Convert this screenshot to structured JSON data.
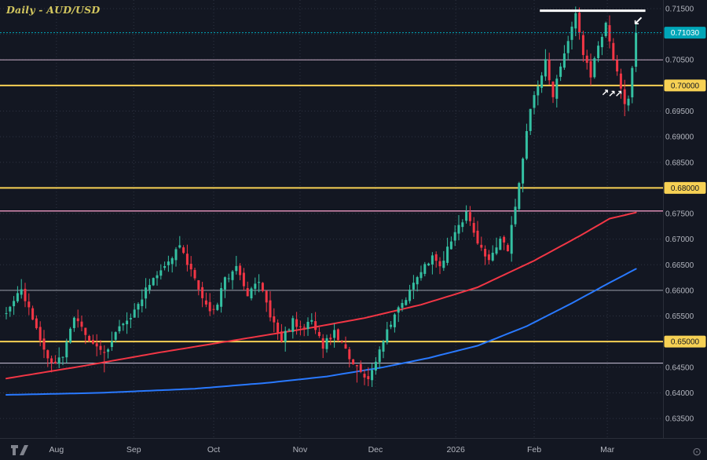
{
  "header": {
    "title": "Daily - AUD/USD"
  },
  "icons": {
    "visibility": "⊙",
    "logo": "tradingview-logo"
  },
  "colors": {
    "background": "#131722",
    "grid": "#2e3342",
    "axis_text": "#b2b5be",
    "up_candle": "#34c0a2",
    "down_candle": "#f23645",
    "yellow_level": "#f7d154",
    "current_price": "#00a6b8",
    "ma_fast": "#f23645",
    "ma_slow": "#2979ff",
    "annotation": "#ffffff"
  },
  "chart_data": {
    "type": "candlestick",
    "symbol": "AUD/USD",
    "timeframe": "Daily",
    "title": "Daily - AUD/USD",
    "y_range": {
      "top": 0.71668,
      "bottom": 0.63118
    },
    "y_axis": {
      "step": 0.005,
      "labels": [
        "0.71500",
        "0.71000",
        "0.70500",
        "0.70000",
        "0.69500",
        "0.69000",
        "0.68500",
        "0.68000",
        "0.67500",
        "0.67000",
        "0.66500",
        "0.66000",
        "0.65500",
        "0.65000",
        "0.64500",
        "0.64000",
        "0.63500"
      ]
    },
    "x_axis": {
      "labels": [
        {
          "text": "Aug",
          "day": 13.3
        },
        {
          "text": "Sep",
          "day": 33.8
        },
        {
          "text": "Oct",
          "day": 55
        },
        {
          "text": "Nov",
          "day": 77.9
        },
        {
          "text": "Dec",
          "day": 97.9
        },
        {
          "text": "2026",
          "day": 119.2
        },
        {
          "text": "Feb",
          "day": 140
        },
        {
          "text": "Mar",
          "day": 159.4
        }
      ]
    },
    "current_price": {
      "value": 0.7103,
      "label": "0.71030",
      "color": "#00a6b8"
    },
    "levels": [
      {
        "value": 0.705,
        "color": "#c9aec6",
        "width": 1
      },
      {
        "value": 0.7,
        "color": "#f7d154",
        "width": 2,
        "badge": "0.70000"
      },
      {
        "value": 0.68,
        "color": "#f7d154",
        "width": 2,
        "badge": "0.68000"
      },
      {
        "value": 0.6755,
        "color": "#d98cb3",
        "width": 1.5
      },
      {
        "value": 0.66,
        "color": "#9aa0aa",
        "width": 1
      },
      {
        "value": 0.65,
        "color": "#f7d154",
        "width": 2,
        "badge": "0.65000"
      },
      {
        "value": 0.6458,
        "color": "#cfc6dd",
        "width": 1
      }
    ],
    "segments": [
      {
        "from_day": 141.5,
        "to_day": 169.5,
        "value": 0.7146,
        "color": "#ffffff",
        "width": 3
      }
    ],
    "arrows": [
      {
        "day": 158.8,
        "price": 0.6986,
        "glyph": "↗",
        "size": 12
      },
      {
        "day": 160.6,
        "price": 0.6984,
        "glyph": "↗",
        "size": 12
      },
      {
        "day": 162.4,
        "price": 0.6984,
        "glyph": "↗",
        "size": 12
      },
      {
        "day": 167.6,
        "price": 0.7124,
        "glyph": "↙",
        "size": 16
      }
    ],
    "candles": {
      "count": 168,
      "x0": 8,
      "spacing": 4.8,
      "body_w": 3,
      "seed": 11,
      "jitter": {
        "open": 0.001,
        "close": 0.0013,
        "wick": 0.002
      }
    },
    "price_anchors": [
      [
        0,
        0.6555
      ],
      [
        4,
        0.6605
      ],
      [
        8,
        0.652
      ],
      [
        12,
        0.6458
      ],
      [
        15,
        0.6472
      ],
      [
        18,
        0.6545
      ],
      [
        22,
        0.6502
      ],
      [
        26,
        0.6476
      ],
      [
        30,
        0.653
      ],
      [
        34,
        0.656
      ],
      [
        38,
        0.6615
      ],
      [
        42,
        0.665
      ],
      [
        46,
        0.6685
      ],
      [
        49,
        0.664
      ],
      [
        52,
        0.658
      ],
      [
        55,
        0.6556
      ],
      [
        58,
        0.662
      ],
      [
        61,
        0.6648
      ],
      [
        64,
        0.6592
      ],
      [
        67,
        0.6618
      ],
      [
        70,
        0.6552
      ],
      [
        73,
        0.6506
      ],
      [
        76,
        0.654
      ],
      [
        78,
        0.6522
      ],
      [
        81,
        0.6546
      ],
      [
        84,
        0.6492
      ],
      [
        87,
        0.652
      ],
      [
        90,
        0.6482
      ],
      [
        93,
        0.6452
      ],
      [
        96,
        0.6428
      ],
      [
        98,
        0.6458
      ],
      [
        101,
        0.652
      ],
      [
        104,
        0.6562
      ],
      [
        107,
        0.66
      ],
      [
        110,
        0.664
      ],
      [
        113,
        0.6668
      ],
      [
        115,
        0.6642
      ],
      [
        118,
        0.67
      ],
      [
        120,
        0.6722
      ],
      [
        122,
        0.6748
      ],
      [
        125,
        0.6692
      ],
      [
        128,
        0.6662
      ],
      [
        131,
        0.67
      ],
      [
        133,
        0.6682
      ],
      [
        135,
        0.6762
      ],
      [
        137,
        0.686
      ],
      [
        139,
        0.6952
      ],
      [
        141,
        0.7002
      ],
      [
        143,
        0.7048
      ],
      [
        145,
        0.6982
      ],
      [
        147,
        0.7042
      ],
      [
        149,
        0.7092
      ],
      [
        151,
        0.7138
      ],
      [
        153,
        0.7062
      ],
      [
        155,
        0.7022
      ],
      [
        157,
        0.7082
      ],
      [
        159,
        0.7118
      ],
      [
        161,
        0.7052
      ],
      [
        163,
        0.6992
      ],
      [
        164,
        0.6968
      ],
      [
        165,
        0.6978
      ],
      [
        166,
        0.7028
      ],
      [
        167,
        0.7103
      ]
    ],
    "wick_overrides": {
      "highs": [
        [
          151,
          0.7154
        ],
        [
          46,
          0.6706
        ],
        [
          122,
          0.6766
        ],
        [
          4,
          0.6622
        ]
      ],
      "lows": [
        [
          96,
          0.6413
        ],
        [
          93,
          0.642
        ],
        [
          12,
          0.644
        ],
        [
          26,
          0.644
        ],
        [
          164,
          0.694
        ]
      ]
    },
    "ma_lines": [
      {
        "name": "ma-fast-red",
        "color": "#f23645",
        "width": 2,
        "anchors": [
          [
            0,
            0.6428
          ],
          [
            20,
            0.6452
          ],
          [
            40,
            0.6478
          ],
          [
            60,
            0.6502
          ],
          [
            80,
            0.6526
          ],
          [
            95,
            0.6546
          ],
          [
            110,
            0.6572
          ],
          [
            125,
            0.6606
          ],
          [
            140,
            0.6658
          ],
          [
            152,
            0.6706
          ],
          [
            160,
            0.674
          ],
          [
            167,
            0.6752
          ]
        ]
      },
      {
        "name": "ma-slow-blue",
        "color": "#2979ff",
        "width": 2,
        "anchors": [
          [
            0,
            0.6396
          ],
          [
            25,
            0.64
          ],
          [
            50,
            0.6408
          ],
          [
            70,
            0.642
          ],
          [
            85,
            0.6432
          ],
          [
            100,
            0.645
          ],
          [
            112,
            0.6468
          ],
          [
            125,
            0.6492
          ],
          [
            138,
            0.653
          ],
          [
            150,
            0.6575
          ],
          [
            160,
            0.6615
          ],
          [
            167,
            0.6642
          ]
        ]
      }
    ]
  }
}
